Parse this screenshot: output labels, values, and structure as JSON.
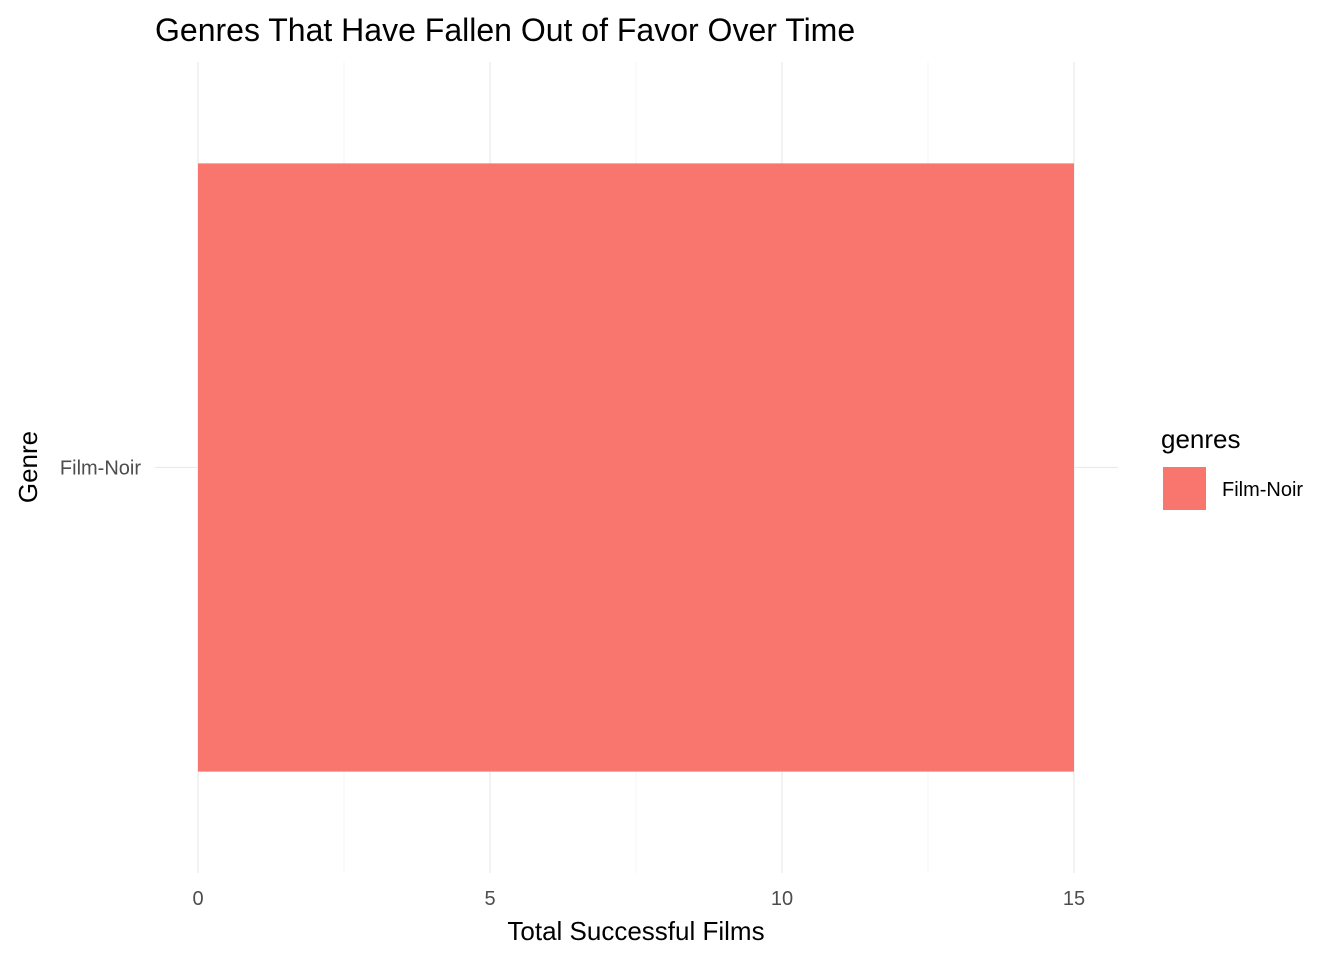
{
  "chart_data": {
    "type": "bar",
    "orientation": "horizontal",
    "title": "Genres That Have Fallen Out of Favor Over Time",
    "xlabel": "Total Successful Films",
    "ylabel": "Genre",
    "categories": [
      "Film-Noir"
    ],
    "series": [
      {
        "values": [
          15
        ]
      }
    ],
    "xlim": [
      0,
      15.75
    ],
    "x_ticks": [
      0,
      5,
      10,
      15
    ],
    "x_tick_labels": [
      "0",
      "5",
      "10",
      "15"
    ],
    "x_minor_ticks": [
      2.5,
      7.5,
      12.5
    ],
    "grid": true,
    "legend": {
      "title": "genres",
      "position": "right",
      "entries": [
        {
          "label": "Film-Noir",
          "color": "#F8766D"
        }
      ]
    },
    "colors": {
      "bar": "#F8766D",
      "grid_major": "#ebebeb",
      "grid_minor": "#f4f4f4",
      "background": "#ffffff"
    }
  }
}
